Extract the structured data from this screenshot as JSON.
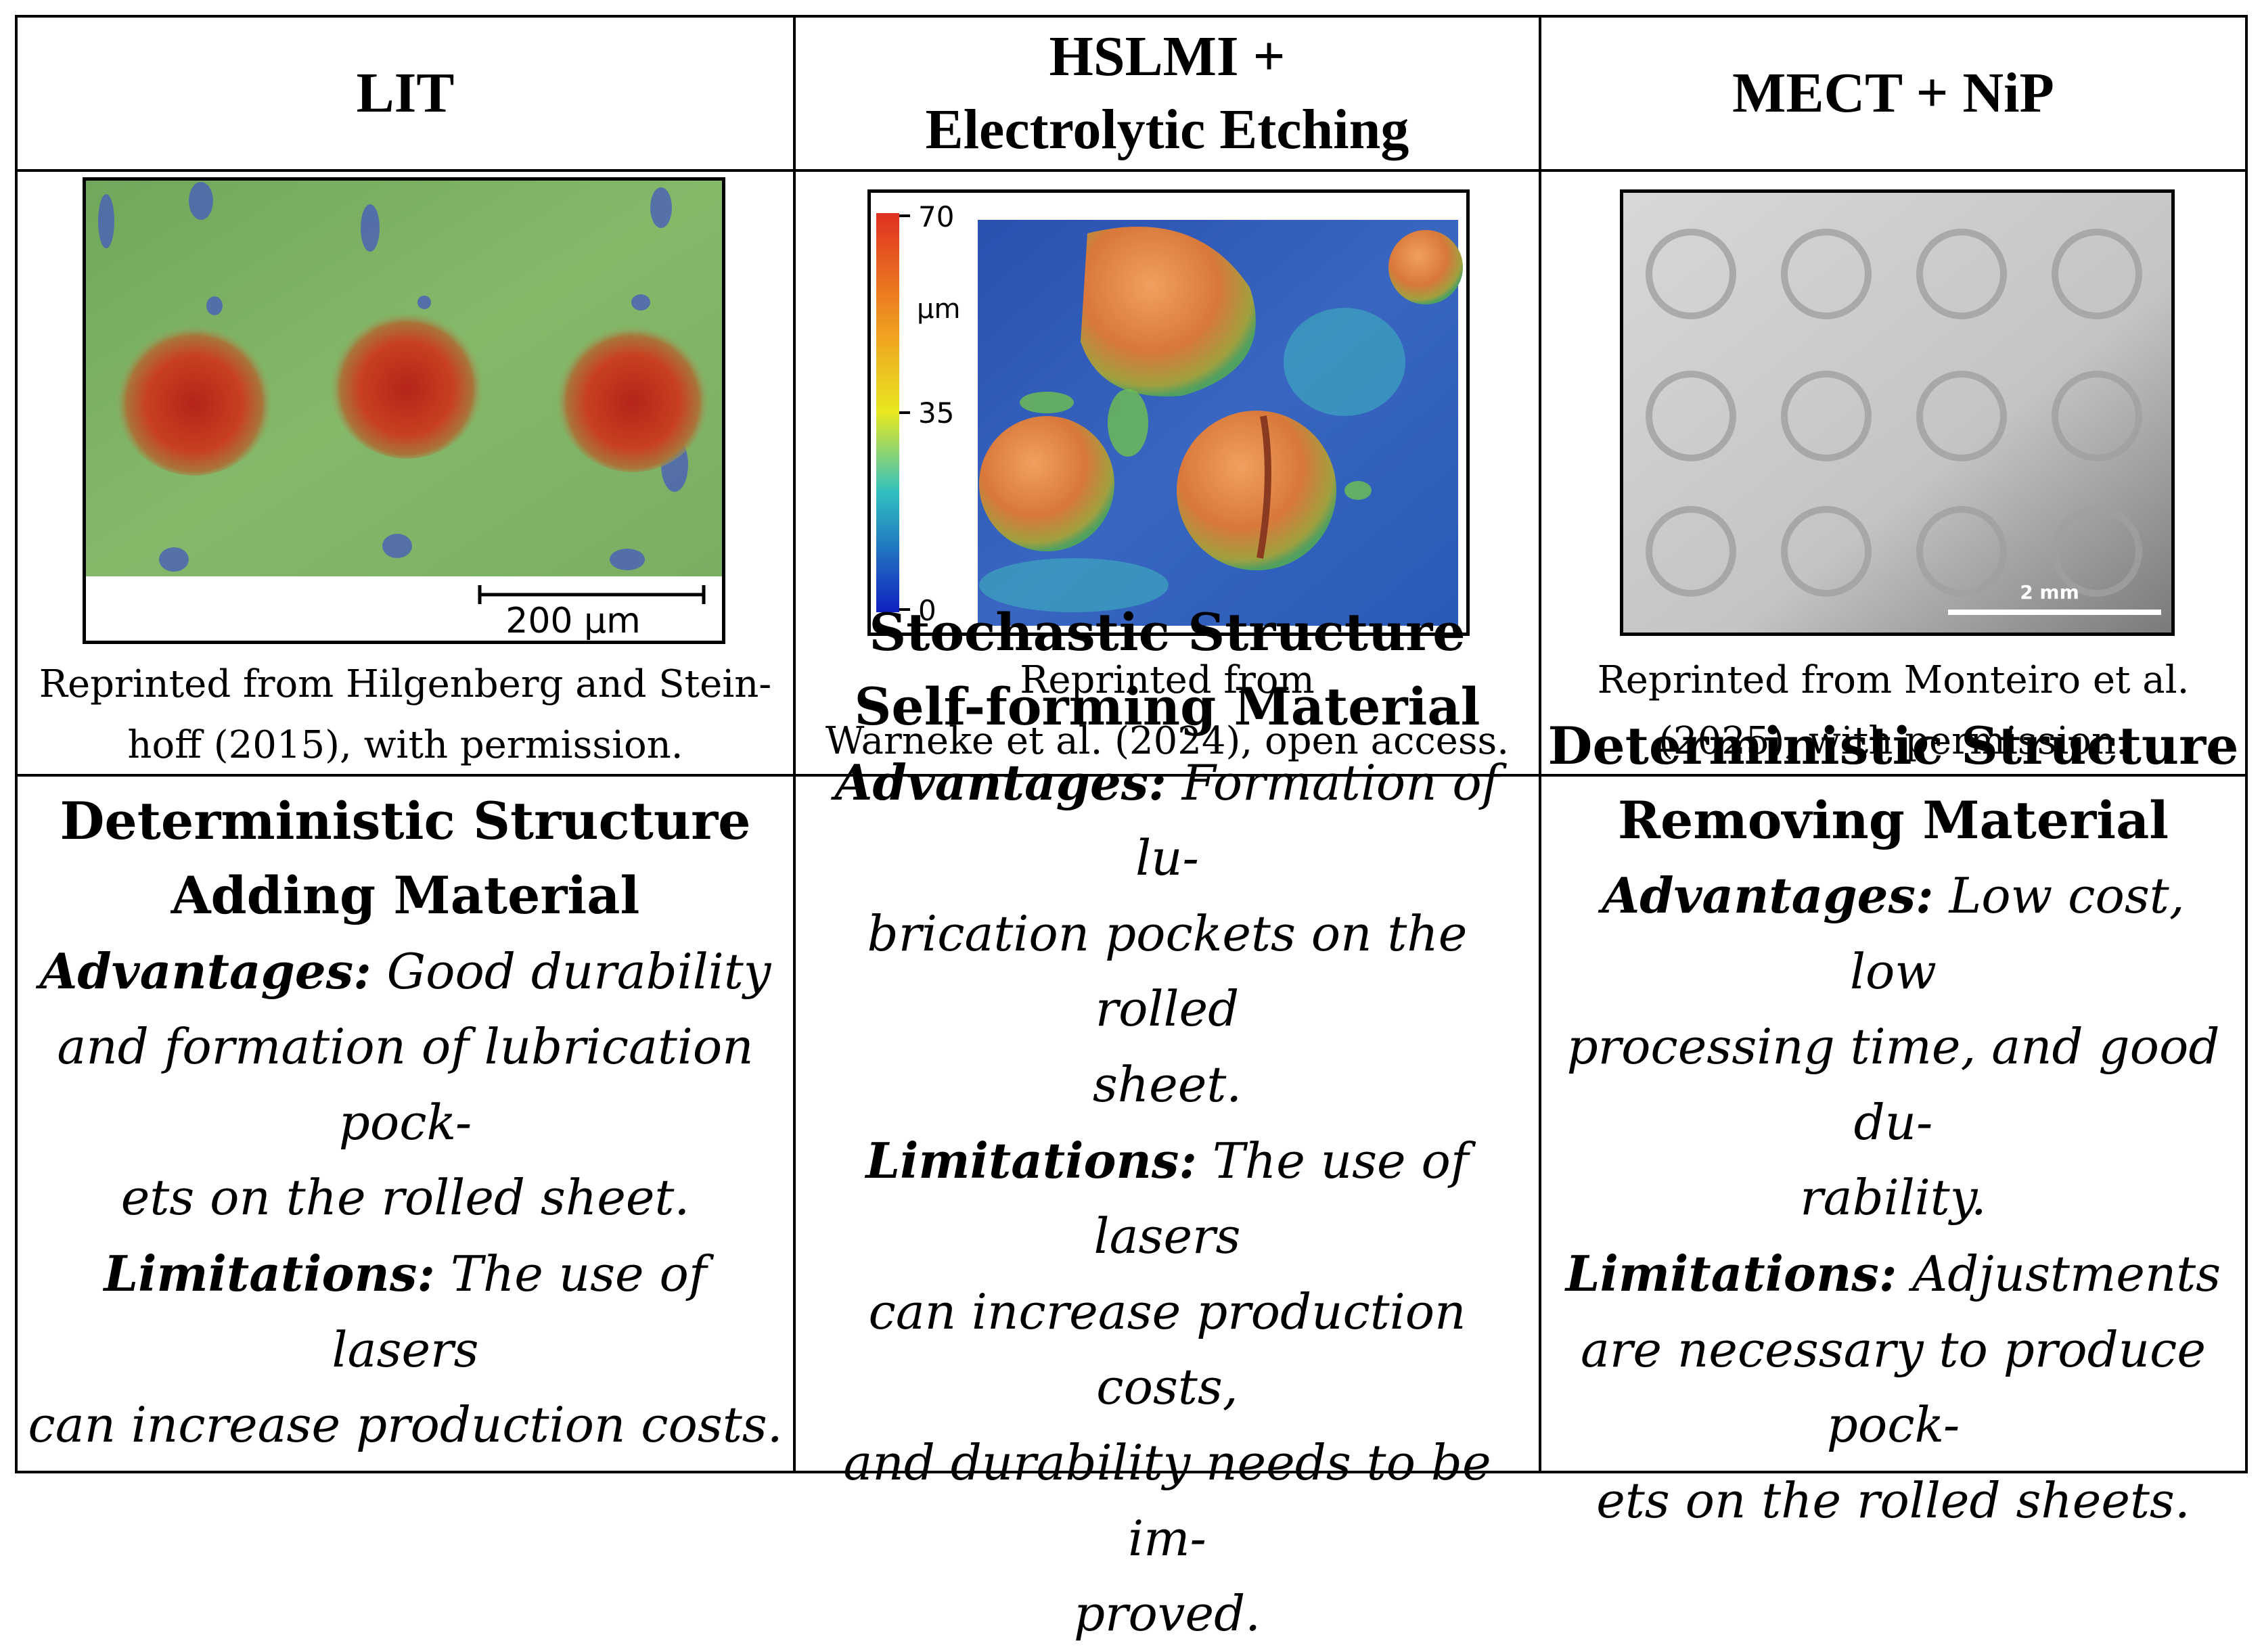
{
  "headers": [
    "LIT",
    "HSLMI +",
    "Electrolytic Etching",
    "MECT + NiP"
  ],
  "figures": {
    "lit": {
      "scale_bar": "200 µm",
      "caption": [
        "Reprinted from Hilgenberg and Stein-",
        "hoff (2015), with permission."
      ]
    },
    "hslmi": {
      "colorbar": {
        "max": "70",
        "mid": "35",
        "min": "0",
        "unit": "µm"
      },
      "caption": [
        "Reprinted from",
        "Warneke et al. (2024), open access."
      ]
    },
    "mect": {
      "scale_bar": "2 mm",
      "caption": [
        "Reprinted from Monteiro et al.",
        "(2025), with permission."
      ]
    }
  },
  "descriptions": {
    "lit": {
      "title": [
        "Deterministic Structure",
        "Adding Material"
      ],
      "adv_label": "Advantages:",
      "adv_lines": [
        " Good durability",
        "and formation of lubrication pock-",
        "ets on the rolled sheet."
      ],
      "lim_label": "Limitations:",
      "lim_lines": [
        " The use of lasers",
        "can increase production costs."
      ]
    },
    "hslmi": {
      "title": [
        "Stochastic Structure",
        "Self-forming Material"
      ],
      "adv_label": "Advantages:",
      "adv_lines": [
        " Formation of lu-",
        "brication pockets on the rolled",
        "sheet."
      ],
      "lim_label": "Limitations:",
      "lim_lines": [
        " The use of lasers",
        "can increase production costs,",
        "and durability needs to be im-",
        "proved."
      ]
    },
    "mect": {
      "title": [
        "Deterministic Structure",
        "Removing Material"
      ],
      "adv_label": "Advantages:",
      "adv_lines": [
        " Low cost, low",
        "processing time, and good du-",
        "rability."
      ],
      "lim_label": "Limitations:",
      "lim_lines": [
        " Adjustments",
        "are necessary to produce pock-",
        "ets on the rolled sheets."
      ]
    }
  }
}
